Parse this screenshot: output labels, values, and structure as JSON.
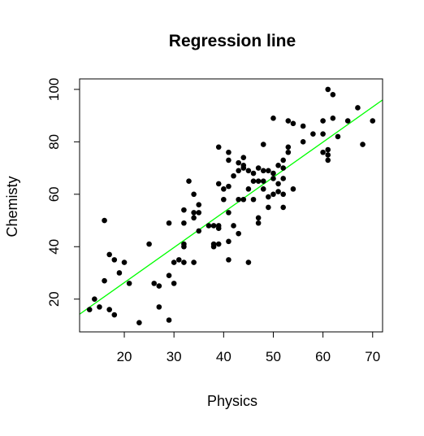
{
  "chart_data": {
    "type": "scatter",
    "title": "Regression line",
    "xlabel": "Physics",
    "ylabel": "Chemisty",
    "xlim": [
      11,
      72
    ],
    "ylim": [
      7.5,
      104
    ],
    "x_ticks": [
      20,
      30,
      40,
      50,
      60,
      70
    ],
    "y_ticks": [
      20,
      40,
      60,
      80,
      100
    ],
    "grid": false,
    "legend": "none",
    "point_color": "#000000",
    "line_color": "#00ff00",
    "regression_line": {
      "slope": 1.34,
      "intercept": -0.5
    },
    "points": [
      {
        "x": 13,
        "y": 16
      },
      {
        "x": 14,
        "y": 20
      },
      {
        "x": 15,
        "y": 17
      },
      {
        "x": 16,
        "y": 27
      },
      {
        "x": 16,
        "y": 50
      },
      {
        "x": 17,
        "y": 37
      },
      {
        "x": 17,
        "y": 16
      },
      {
        "x": 18,
        "y": 14
      },
      {
        "x": 18,
        "y": 35
      },
      {
        "x": 19,
        "y": 30
      },
      {
        "x": 20,
        "y": 34
      },
      {
        "x": 21,
        "y": 26
      },
      {
        "x": 23,
        "y": 11
      },
      {
        "x": 25,
        "y": 41
      },
      {
        "x": 26,
        "y": 26
      },
      {
        "x": 27,
        "y": 17
      },
      {
        "x": 27,
        "y": 25
      },
      {
        "x": 29,
        "y": 12
      },
      {
        "x": 29,
        "y": 29
      },
      {
        "x": 29,
        "y": 49
      },
      {
        "x": 30,
        "y": 34
      },
      {
        "x": 30,
        "y": 26
      },
      {
        "x": 31,
        "y": 35
      },
      {
        "x": 32,
        "y": 34
      },
      {
        "x": 32,
        "y": 40
      },
      {
        "x": 32,
        "y": 41
      },
      {
        "x": 32,
        "y": 49
      },
      {
        "x": 32,
        "y": 54
      },
      {
        "x": 33,
        "y": 65
      },
      {
        "x": 34,
        "y": 34
      },
      {
        "x": 34,
        "y": 51
      },
      {
        "x": 34,
        "y": 53
      },
      {
        "x": 34,
        "y": 60
      },
      {
        "x": 35,
        "y": 46
      },
      {
        "x": 35,
        "y": 53
      },
      {
        "x": 35,
        "y": 56
      },
      {
        "x": 37,
        "y": 48
      },
      {
        "x": 38,
        "y": 40
      },
      {
        "x": 38,
        "y": 41
      },
      {
        "x": 38,
        "y": 48
      },
      {
        "x": 39,
        "y": 41
      },
      {
        "x": 39,
        "y": 47
      },
      {
        "x": 39,
        "y": 48
      },
      {
        "x": 39,
        "y": 64
      },
      {
        "x": 39,
        "y": 78
      },
      {
        "x": 40,
        "y": 58
      },
      {
        "x": 40,
        "y": 62
      },
      {
        "x": 41,
        "y": 35
      },
      {
        "x": 41,
        "y": 42
      },
      {
        "x": 41,
        "y": 53
      },
      {
        "x": 41,
        "y": 63
      },
      {
        "x": 41,
        "y": 73
      },
      {
        "x": 41,
        "y": 76
      },
      {
        "x": 42,
        "y": 48
      },
      {
        "x": 42,
        "y": 67
      },
      {
        "x": 43,
        "y": 45
      },
      {
        "x": 43,
        "y": 58
      },
      {
        "x": 43,
        "y": 69
      },
      {
        "x": 43,
        "y": 72
      },
      {
        "x": 44,
        "y": 58
      },
      {
        "x": 44,
        "y": 70
      },
      {
        "x": 44,
        "y": 71
      },
      {
        "x": 44,
        "y": 74
      },
      {
        "x": 45,
        "y": 34
      },
      {
        "x": 45,
        "y": 62
      },
      {
        "x": 45,
        "y": 69
      },
      {
        "x": 46,
        "y": 58
      },
      {
        "x": 46,
        "y": 65
      },
      {
        "x": 46,
        "y": 68
      },
      {
        "x": 47,
        "y": 49
      },
      {
        "x": 47,
        "y": 51
      },
      {
        "x": 47,
        "y": 65
      },
      {
        "x": 47,
        "y": 70
      },
      {
        "x": 48,
        "y": 62
      },
      {
        "x": 48,
        "y": 65
      },
      {
        "x": 48,
        "y": 69
      },
      {
        "x": 48,
        "y": 79
      },
      {
        "x": 49,
        "y": 55
      },
      {
        "x": 49,
        "y": 59
      },
      {
        "x": 49,
        "y": 69
      },
      {
        "x": 50,
        "y": 60
      },
      {
        "x": 50,
        "y": 66
      },
      {
        "x": 50,
        "y": 68
      },
      {
        "x": 50,
        "y": 89
      },
      {
        "x": 51,
        "y": 61
      },
      {
        "x": 51,
        "y": 64
      },
      {
        "x": 51,
        "y": 71
      },
      {
        "x": 52,
        "y": 55
      },
      {
        "x": 52,
        "y": 60
      },
      {
        "x": 52,
        "y": 66
      },
      {
        "x": 52,
        "y": 70
      },
      {
        "x": 52,
        "y": 73
      },
      {
        "x": 53,
        "y": 76
      },
      {
        "x": 53,
        "y": 78
      },
      {
        "x": 53,
        "y": 88
      },
      {
        "x": 54,
        "y": 62
      },
      {
        "x": 54,
        "y": 87
      },
      {
        "x": 56,
        "y": 80
      },
      {
        "x": 56,
        "y": 86
      },
      {
        "x": 58,
        "y": 83
      },
      {
        "x": 60,
        "y": 76
      },
      {
        "x": 60,
        "y": 83
      },
      {
        "x": 60,
        "y": 88
      },
      {
        "x": 61,
        "y": 73
      },
      {
        "x": 61,
        "y": 75
      },
      {
        "x": 61,
        "y": 77
      },
      {
        "x": 61,
        "y": 100
      },
      {
        "x": 62,
        "y": 89
      },
      {
        "x": 62,
        "y": 98
      },
      {
        "x": 63,
        "y": 82
      },
      {
        "x": 65,
        "y": 88
      },
      {
        "x": 67,
        "y": 93
      },
      {
        "x": 68,
        "y": 79
      },
      {
        "x": 70,
        "y": 88
      }
    ]
  }
}
